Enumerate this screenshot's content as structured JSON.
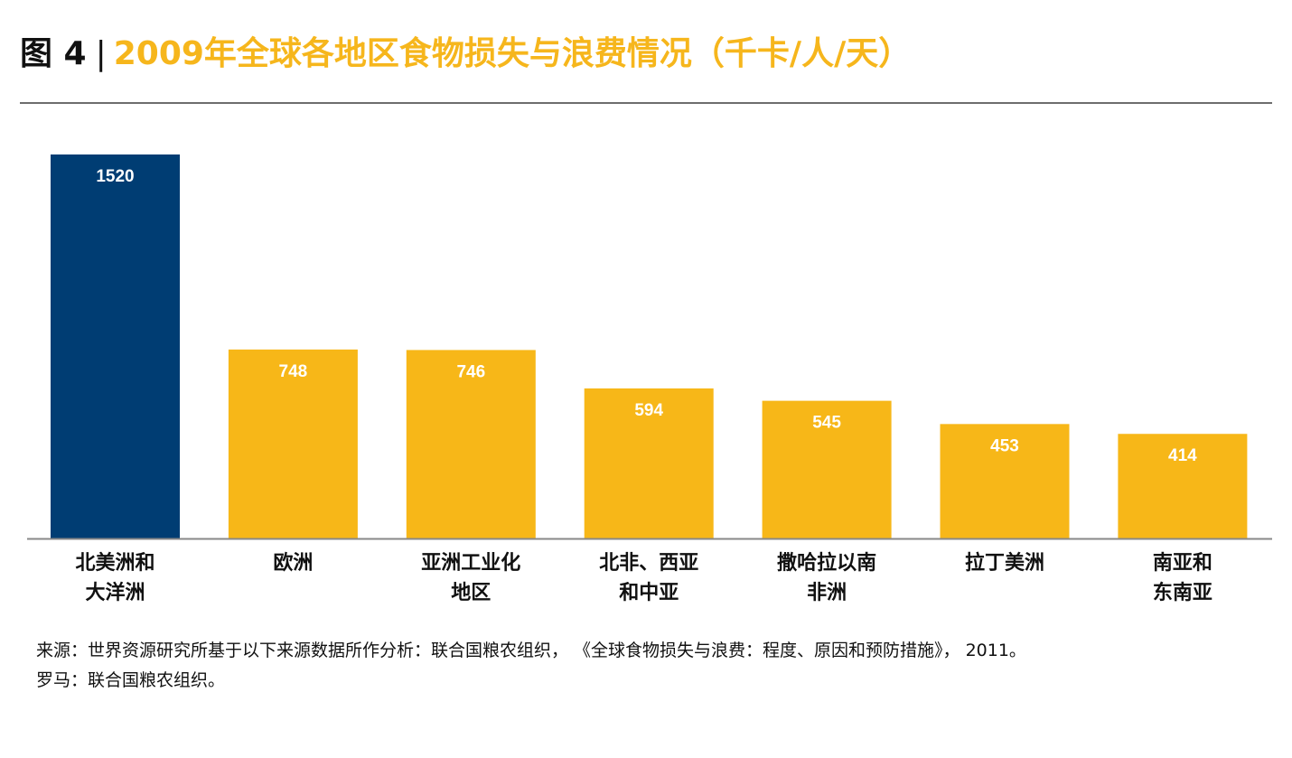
{
  "header": {
    "figure_label": "图 4",
    "separator": "|",
    "title": "2009年全球各地区食物损失与浪费情况（千卡/人/天）"
  },
  "colors": {
    "highlight_bar": "#003d73",
    "bar": "#f7b718",
    "title_accent": "#f6b61c",
    "axis": "#888888"
  },
  "chart_data": {
    "type": "bar",
    "title": "2009年全球各地区食物损失与浪费情况（千卡/人/天）",
    "categories": [
      [
        "北美洲和",
        "大洋洲"
      ],
      [
        "欧洲"
      ],
      [
        "亚洲工业化",
        "地区"
      ],
      [
        "北非、西亚",
        "和中亚"
      ],
      [
        "撒哈拉以南",
        "非洲"
      ],
      [
        "拉丁美洲"
      ],
      [
        "南亚和",
        "东南亚"
      ]
    ],
    "values": [
      1520,
      748,
      746,
      594,
      545,
      453,
      414
    ],
    "highlight_index": 0,
    "ylim": [
      0,
      1520
    ],
    "grid": false,
    "legend": "none"
  },
  "source": {
    "line1": "来源：世界资源研究所基于以下来源数据所作分析：联合国粮农组织，  《全球食物损失与浪费：程度、原因和预防措施》，  2011。",
    "line2": "罗马：联合国粮农组织。"
  }
}
